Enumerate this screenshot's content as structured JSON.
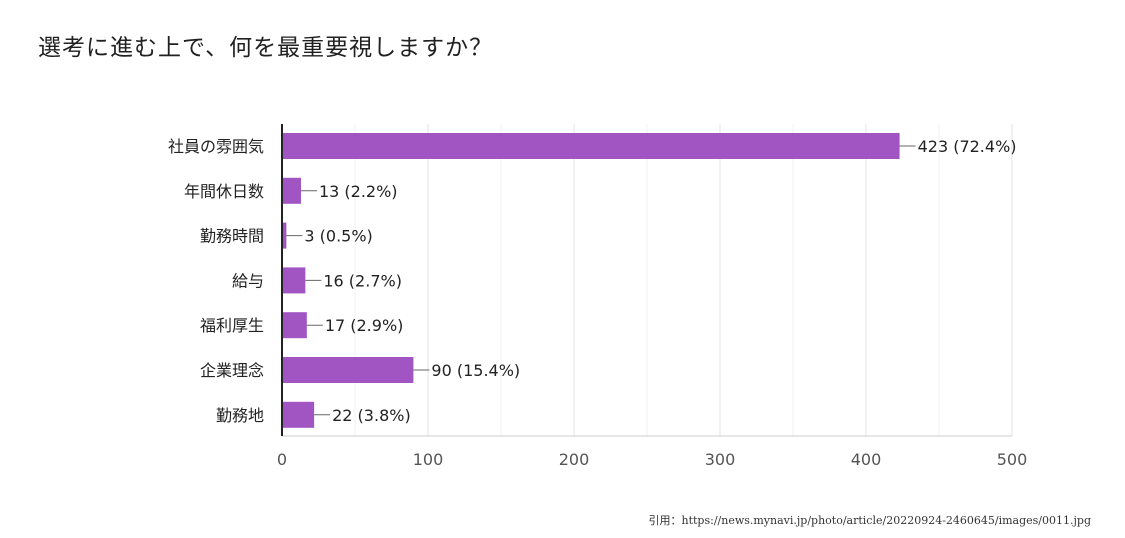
{
  "title": "選考に進む上で、何を最重要視しますか？",
  "source": "引用：https://news.mynavi.jp/photo/article/20220924-2460645/images/0011.jpg",
  "colors": {
    "bar": "#a155c2",
    "grid": "#e3e3e3",
    "axis": "#222222",
    "text": "#222222",
    "tick": "#555555"
  },
  "chart_data": {
    "type": "bar",
    "orientation": "horizontal",
    "title": "選考に進む上で、何を最重要視しますか？",
    "xlabel": "",
    "ylabel": "",
    "xlim": [
      0,
      500
    ],
    "xticks": [
      0,
      100,
      200,
      300,
      400,
      500
    ],
    "grid": true,
    "categories": [
      "社員の雰囲気",
      "年間休日数",
      "勤務時間",
      "給与",
      "福利厚生",
      "企業理念",
      "勤務地"
    ],
    "values": [
      423,
      13,
      3,
      16,
      17,
      90,
      22
    ],
    "labels": [
      "423 (72.4%)",
      "13 (2.2%)",
      "3 (0.5%)",
      "16 (2.7%)",
      "17 (2.9%)",
      "90 (15.4%)",
      "22 (3.8%)"
    ]
  }
}
